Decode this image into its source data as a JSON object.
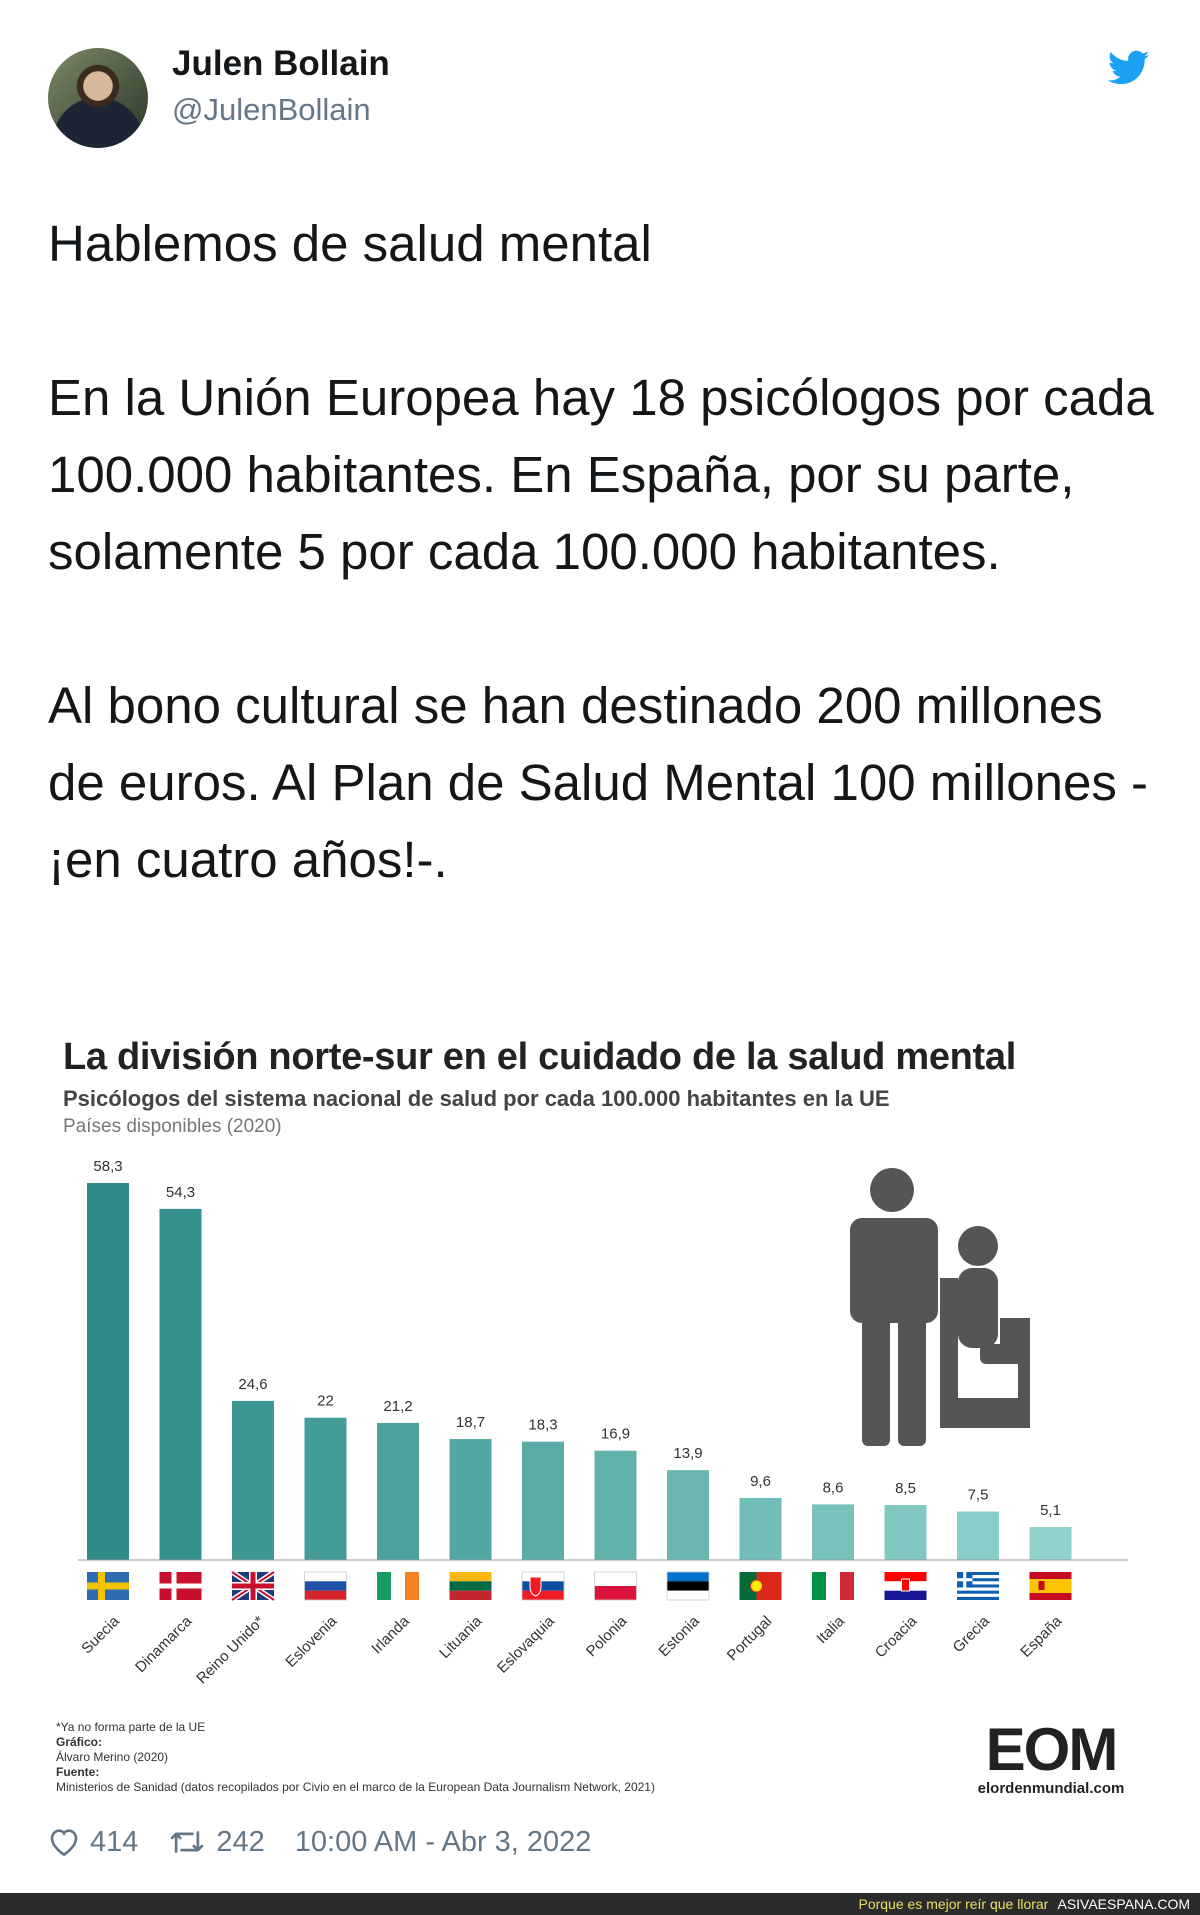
{
  "author": {
    "name": "Julen Bollain",
    "handle": "@JulenBollain"
  },
  "tweet": {
    "paragraphs": [
      "Hablemos de salud mental",
      "En la Unión Europea hay 18 psicólogos por cada 100.000 habitantes. En España, por su parte, solamente 5 por cada 100.000 habitantes.",
      "Al bono cultural se han destinado 200 millones de euros. Al Plan de Salud Mental 100 millones -¡en cuatro años!-."
    ]
  },
  "infographic": {
    "footnote_asterisk": "*Ya no forma parte de la UE",
    "credit_label": "Gráfico:",
    "credit_value": "Álvaro Merino (2020)",
    "source_label": "Fuente:",
    "source_value": "Ministerios de Sanidad (datos recopilados por Civio en el marco de la European Data Journalism Network, 2021)",
    "logo_text": "EOM",
    "logo_url": "elordenmundial.com"
  },
  "chart_data": {
    "type": "bar",
    "title": "La división norte-sur en el cuidado de la salud mental",
    "subtitle": "Psicólogos del sistema nacional de salud por cada 100.000 habitantes en la UE",
    "note": "Países disponibles (2020)",
    "categories": [
      "Suecia",
      "Dinamarca",
      "Reino Unido*",
      "Eslovenia",
      "Irlanda",
      "Lituania",
      "Eslovaquia",
      "Polonia",
      "Estonia",
      "Portugal",
      "Italia",
      "Croacia",
      "Grecia",
      "España"
    ],
    "values": [
      58.3,
      54.3,
      24.6,
      22,
      21.2,
      18.7,
      18.3,
      16.9,
      13.9,
      9.6,
      8.6,
      8.5,
      7.5,
      5.1
    ],
    "value_labels": [
      "58,3",
      "54,3",
      "24,6",
      "22",
      "21,2",
      "18,7",
      "18,3",
      "16,9",
      "13,9",
      "9,6",
      "8,6",
      "8,5",
      "7,5",
      "5,1"
    ],
    "ylim": [
      0,
      60
    ],
    "grid": false,
    "colors": {
      "bar_dark": "#2e8b87",
      "bar_light": "#8fd3cc"
    },
    "flags": [
      "sweden",
      "denmark",
      "uk",
      "slovenia",
      "ireland",
      "lithuania",
      "slovakia",
      "poland",
      "estonia",
      "portugal",
      "italy",
      "croatia",
      "greece",
      "spain"
    ]
  },
  "stats": {
    "likes": "414",
    "retweets": "242",
    "timestamp": "10:00 AM - Abr 3, 2022"
  },
  "footer": {
    "tagline": "Porque es mejor reír que llorar",
    "site": "ASIVAESPANA.COM"
  }
}
